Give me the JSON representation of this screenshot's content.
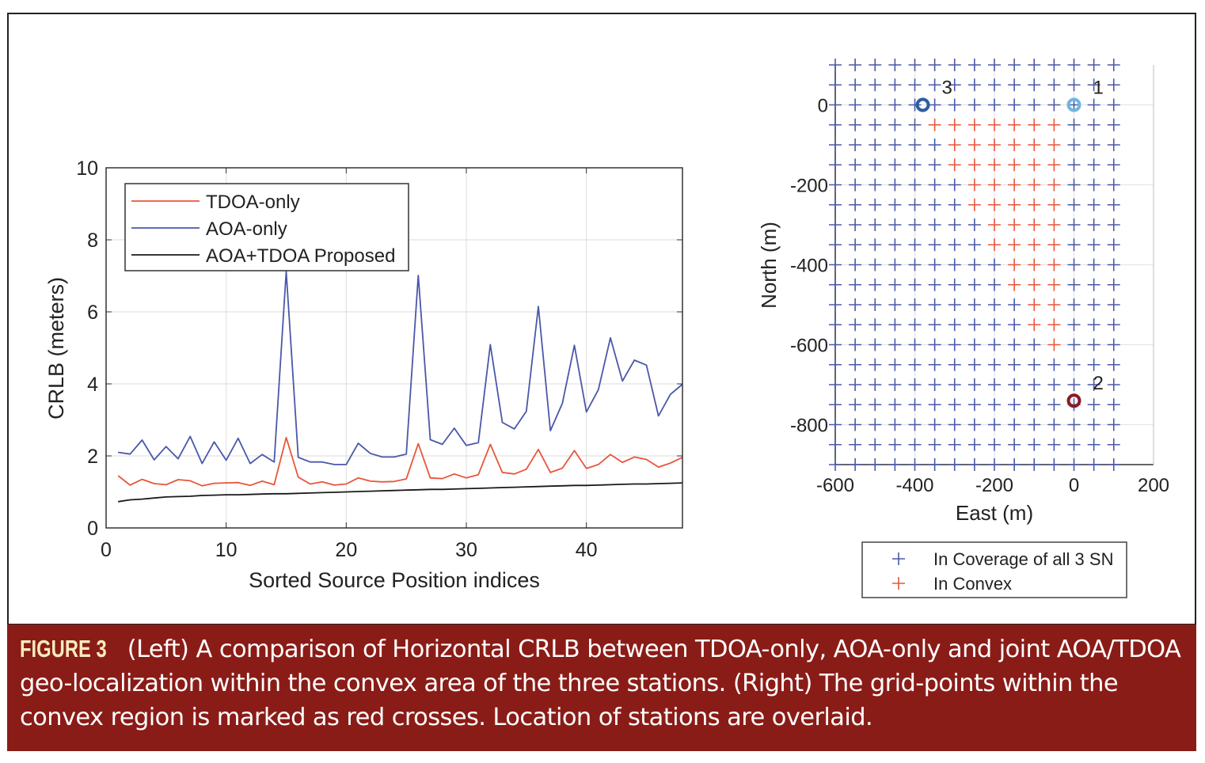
{
  "caption": {
    "label": "FIGURE 3",
    "text": "(Left) A comparison of Horizontal CRLB between TDOA-only, AOA-only and joint AOA/TDOA geo-localization within the convex area of the three stations. (Right) The grid-points within the convex region is marked as red crosses. Location of stations are overlaid."
  },
  "colors": {
    "tdoa": "#e8563a",
    "aoa": "#4a58a8",
    "joint": "#1a1a1a",
    "coverage": "#4a58a8",
    "convex": "#e8563a",
    "station1": "#6fb6e0",
    "station2": "#8b1c22",
    "station3": "#2a5f9e",
    "caption_bg": "#8a1c17",
    "caption_label": "#f6ecbe"
  },
  "chart_data": [
    {
      "type": "line",
      "xlabel": "Sorted Source Position indices",
      "ylabel": "CRLB (meters)",
      "xlim": [
        0,
        48
      ],
      "ylim": [
        0,
        10
      ],
      "xticks": [
        0,
        10,
        20,
        30,
        40
      ],
      "yticks": [
        0,
        2,
        4,
        6,
        8,
        10
      ],
      "grid": true,
      "legend_placement": "top-left",
      "x": [
        1,
        2,
        3,
        4,
        5,
        6,
        7,
        8,
        9,
        10,
        11,
        12,
        13,
        14,
        15,
        16,
        17,
        18,
        19,
        20,
        21,
        22,
        23,
        24,
        25,
        26,
        27,
        28,
        29,
        30,
        31,
        32,
        33,
        34,
        35,
        36,
        37,
        38,
        39,
        40,
        41,
        42,
        43,
        44,
        45,
        46,
        47,
        48
      ],
      "series": [
        {
          "name": "TDOA-only",
          "color": "#e8563a",
          "values": [
            1.45,
            1.19,
            1.35,
            1.23,
            1.2,
            1.34,
            1.31,
            1.17,
            1.24,
            1.25,
            1.26,
            1.18,
            1.3,
            1.2,
            2.51,
            1.41,
            1.22,
            1.28,
            1.19,
            1.22,
            1.39,
            1.3,
            1.28,
            1.29,
            1.36,
            2.34,
            1.39,
            1.37,
            1.5,
            1.39,
            1.48,
            2.32,
            1.54,
            1.5,
            1.63,
            2.18,
            1.54,
            1.66,
            2.15,
            1.65,
            1.76,
            2.04,
            1.82,
            1.97,
            1.9,
            1.69,
            1.8,
            1.96
          ]
        },
        {
          "name": "AOA-only",
          "color": "#4a58a8",
          "values": [
            2.1,
            2.05,
            2.44,
            1.89,
            2.26,
            1.92,
            2.54,
            1.79,
            2.39,
            1.88,
            2.49,
            1.79,
            2.04,
            1.83,
            7.12,
            1.96,
            1.83,
            1.83,
            1.76,
            1.76,
            2.35,
            2.07,
            1.97,
            1.97,
            2.05,
            7.01,
            2.45,
            2.32,
            2.77,
            2.29,
            2.37,
            5.09,
            2.93,
            2.75,
            3.24,
            6.15,
            2.7,
            3.46,
            5.07,
            3.22,
            3.84,
            5.28,
            4.08,
            4.66,
            4.52,
            3.11,
            3.71,
            3.99
          ]
        },
        {
          "name": "AOA+TDOA Proposed",
          "color": "#1a1a1a",
          "values": [
            0.73,
            0.78,
            0.8,
            0.83,
            0.86,
            0.87,
            0.88,
            0.9,
            0.91,
            0.92,
            0.92,
            0.93,
            0.94,
            0.95,
            0.95,
            0.96,
            0.97,
            0.98,
            0.99,
            1.0,
            1.01,
            1.02,
            1.03,
            1.04,
            1.05,
            1.06,
            1.07,
            1.07,
            1.08,
            1.09,
            1.1,
            1.11,
            1.12,
            1.13,
            1.14,
            1.15,
            1.16,
            1.17,
            1.18,
            1.18,
            1.19,
            1.2,
            1.21,
            1.22,
            1.22,
            1.23,
            1.24,
            1.25
          ]
        }
      ]
    },
    {
      "type": "scatter",
      "xlabel": "East (m)",
      "ylabel": "North (m)",
      "xlim": [
        -600,
        200
      ],
      "ylim": [
        -900,
        100
      ],
      "xticks": [
        -600,
        -400,
        -200,
        0,
        200
      ],
      "yticks": [
        -800,
        -600,
        -400,
        -200,
        0
      ],
      "grid": true,
      "legend_placement": "bottom-outside",
      "grid_points": {
        "east_min": -600,
        "east_max": 100,
        "north_min": -900,
        "north_max": 100,
        "step": 50
      },
      "legend": [
        "In Coverage of all 3 SN",
        "In Convex"
      ],
      "convex_rows": [
        {
          "north": -50,
          "east": [
            -350,
            -50
          ]
        },
        {
          "north": -100,
          "east": [
            -300,
            -50
          ]
        },
        {
          "north": -150,
          "east": [
            -300,
            -50
          ]
        },
        {
          "north": -200,
          "east": [
            -250,
            -50
          ]
        },
        {
          "north": -250,
          "east": [
            -250,
            -50
          ]
        },
        {
          "north": -300,
          "east": [
            -200,
            -50
          ]
        },
        {
          "north": -350,
          "east": [
            -200,
            -50
          ]
        },
        {
          "north": -400,
          "east": [
            -150,
            -50
          ]
        },
        {
          "north": -450,
          "east": [
            -150,
            -50
          ]
        },
        {
          "north": -500,
          "east": [
            -100,
            -50
          ]
        },
        {
          "north": -550,
          "east": [
            -100,
            -50
          ]
        },
        {
          "north": -600,
          "east": [
            -50,
            -50
          ]
        }
      ],
      "stations": [
        {
          "label": "1",
          "east": 0,
          "north": 0,
          "color": "#6fb6e0"
        },
        {
          "label": "2",
          "east": 0,
          "north": -740,
          "color": "#8b1c22"
        },
        {
          "label": "3",
          "east": -380,
          "north": 0,
          "color": "#2a5f9e"
        }
      ]
    }
  ]
}
